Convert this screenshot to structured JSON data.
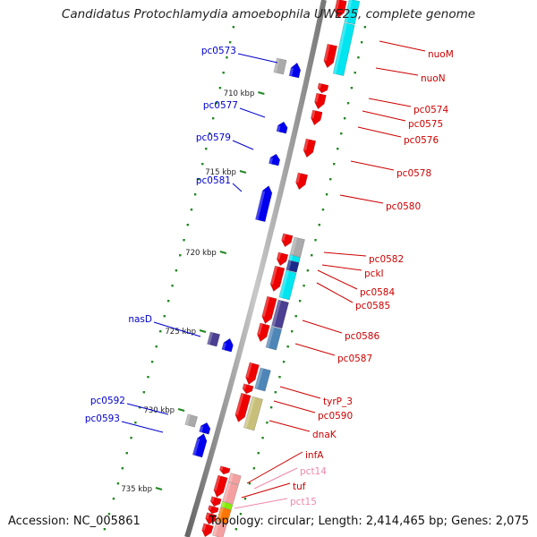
{
  "title": "Candidatus Protochlamydia amoebophila UWE25, complete genome",
  "footer": {
    "accession": "Accession: NC_005861",
    "summary": "Topology: circular; Length: 2,414,465 bp; Genes: 2,075"
  },
  "ticks": [
    {
      "label": "710 kbp"
    },
    {
      "label": "715 kbp"
    },
    {
      "label": "720 kbp"
    },
    {
      "label": "725 kbp"
    },
    {
      "label": "730 kbp"
    },
    {
      "label": "735 kbp"
    }
  ],
  "left_labels": [
    {
      "text": "pc0573",
      "color": "#0000cc"
    },
    {
      "text": "pc0577",
      "color": "#0000cc"
    },
    {
      "text": "pc0579",
      "color": "#0000cc"
    },
    {
      "text": "pc0581",
      "color": "#0000cc"
    },
    {
      "text": "nasD",
      "color": "#0000cc"
    },
    {
      "text": "pc0592",
      "color": "#0000cc"
    },
    {
      "text": "pc0593",
      "color": "#0000cc"
    }
  ],
  "right_labels": [
    {
      "text": "nuoM",
      "color": "#cc0000"
    },
    {
      "text": "nuoN",
      "color": "#cc0000"
    },
    {
      "text": "pc0574",
      "color": "#cc0000"
    },
    {
      "text": "pc0575",
      "color": "#cc0000"
    },
    {
      "text": "pc0576",
      "color": "#cc0000"
    },
    {
      "text": "pc0578",
      "color": "#cc0000"
    },
    {
      "text": "pc0580",
      "color": "#cc0000"
    },
    {
      "text": "pc0582",
      "color": "#cc0000"
    },
    {
      "text": "pckI",
      "color": "#cc0000"
    },
    {
      "text": "pc0584",
      "color": "#cc0000"
    },
    {
      "text": "pc0585",
      "color": "#cc0000"
    },
    {
      "text": "pc0586",
      "color": "#cc0000"
    },
    {
      "text": "pc0587",
      "color": "#cc0000"
    },
    {
      "text": "tyrP_3",
      "color": "#cc0000"
    },
    {
      "text": "pc0590",
      "color": "#cc0000"
    },
    {
      "text": "dnaK",
      "color": "#cc0000"
    },
    {
      "text": "infA",
      "color": "#cc0000"
    },
    {
      "text": "pct14",
      "color": "#ee88aa"
    },
    {
      "text": "tuf",
      "color": "#cc0000"
    },
    {
      "text": "pct15",
      "color": "#ee88aa"
    }
  ],
  "colors": {
    "forward_gene": "#ee0000",
    "reverse_gene": "#0000ee",
    "backbone": "#888888",
    "tick_marks": "#228822",
    "cds_cyan": "#00e5f0",
    "cds_navy": "#1a2a8a",
    "cds_steel": "#4f86b8",
    "cds_purple": "#4a3f90",
    "cds_khaki": "#c8c07a",
    "cds_gray": "#aaaaaa",
    "cds_pink": "#f4a0a0",
    "cds_orange": "#ff7700",
    "cds_green": "#88ee00"
  }
}
